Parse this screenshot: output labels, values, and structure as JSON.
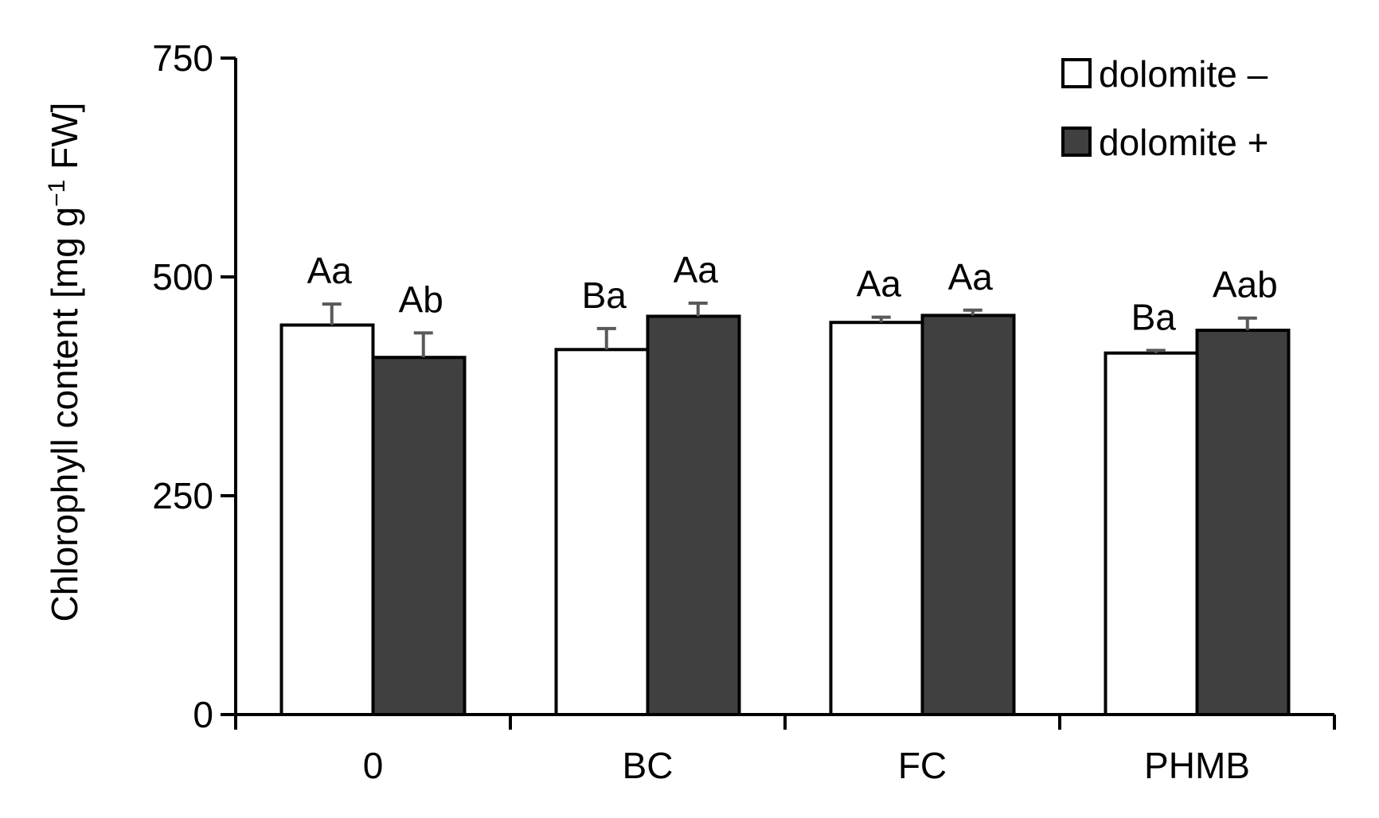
{
  "chart_data": {
    "type": "bar",
    "title": "",
    "xlabel": "",
    "ylabel": "Chlorophyll content [mg g",
    "ylabel_superscript": "−1",
    "ylabel_suffix": " FW]",
    "ylim": [
      0,
      750
    ],
    "yticks": [
      0,
      250,
      500,
      750
    ],
    "grid": false,
    "legend_position": "top-right",
    "categories": [
      "0",
      "BC",
      "FC",
      "PHMB"
    ],
    "series": [
      {
        "name": "dolomite –",
        "color": "#ffffff",
        "values": [
          445,
          417,
          448,
          413
        ],
        "errors": [
          24,
          24,
          6,
          3
        ],
        "labels": [
          "Aa",
          "Ba",
          "Aa",
          "Ba"
        ]
      },
      {
        "name": "dolomite +",
        "color": "#404040",
        "values": [
          408,
          455,
          456,
          439
        ],
        "errors": [
          28,
          15,
          6,
          14
        ],
        "labels": [
          "Ab",
          "Aa",
          "Aa",
          "Aab"
        ]
      }
    ],
    "colors": {
      "axis": "#000000",
      "error_bar": "#595959",
      "bar_edge": "#000000"
    }
  }
}
